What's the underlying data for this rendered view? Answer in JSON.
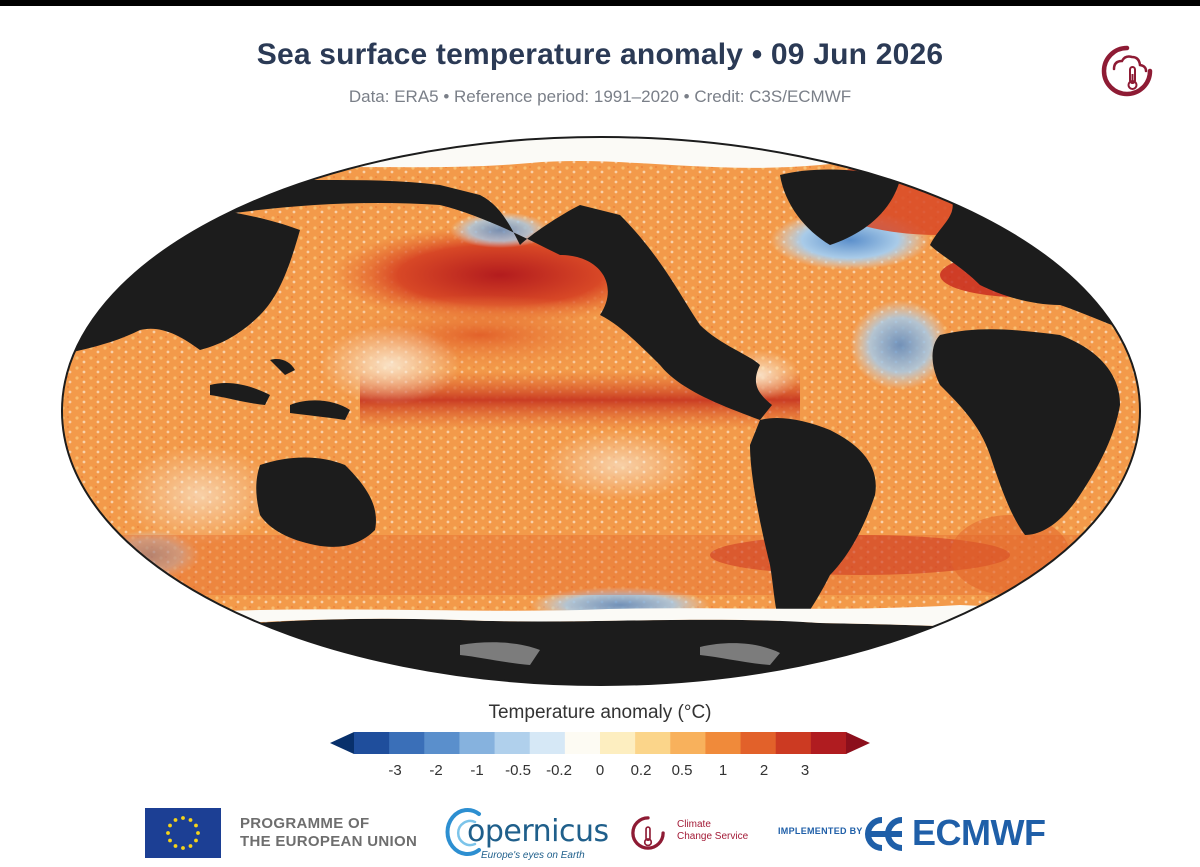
{
  "header": {
    "title": "Sea surface temperature anomaly • 09 Jun 2026",
    "subtitle": "Data: ERA5 • Reference period: 1991–2020 • Credit: C3S/ECMWF"
  },
  "legend": {
    "title": "Temperature anomaly (°C)",
    "tick_labels": [
      "-3",
      "-2",
      "-1",
      "-0.5",
      "-0.2",
      "0",
      "0.2",
      "0.5",
      "1",
      "2",
      "3"
    ],
    "colors": [
      "#08306b",
      "#1f4e9c",
      "#3a6fb8",
      "#5a8fcc",
      "#86b2de",
      "#b0d0ec",
      "#d6e8f6",
      "#fdfbf3",
      "#fdeec0",
      "#fbd58a",
      "#f8b15c",
      "#f08a3a",
      "#e2612a",
      "#cc3a22",
      "#b01c20",
      "#8c0f1c"
    ]
  },
  "map": {
    "ocean_colors": {
      "warm_strong": "#c5261d",
      "warm": "#e86a2c",
      "warm_mid": "#f39a4a",
      "warm_light": "#f9c987",
      "neutral": "#fbf3e4",
      "cool": "#a9cbe8",
      "cool_strong": "#5b8fcb"
    },
    "land_color": "#1c1c1c",
    "ice_color": "#fbfaf6",
    "antarctic_shelf_color": "#7c7c7c"
  },
  "footer": {
    "eu_programme_line1": "PROGRAMME OF",
    "eu_programme_line2": "THE EUROPEAN UNION",
    "copernicus_word": "opernicus",
    "copernicus_tagline": "Europe's eyes on Earth",
    "ccs_line1": "Climate",
    "ccs_line2": "Change Service",
    "implemented_by": "IMPLEMENTED BY",
    "ecmwf_word": "ECMWF"
  }
}
